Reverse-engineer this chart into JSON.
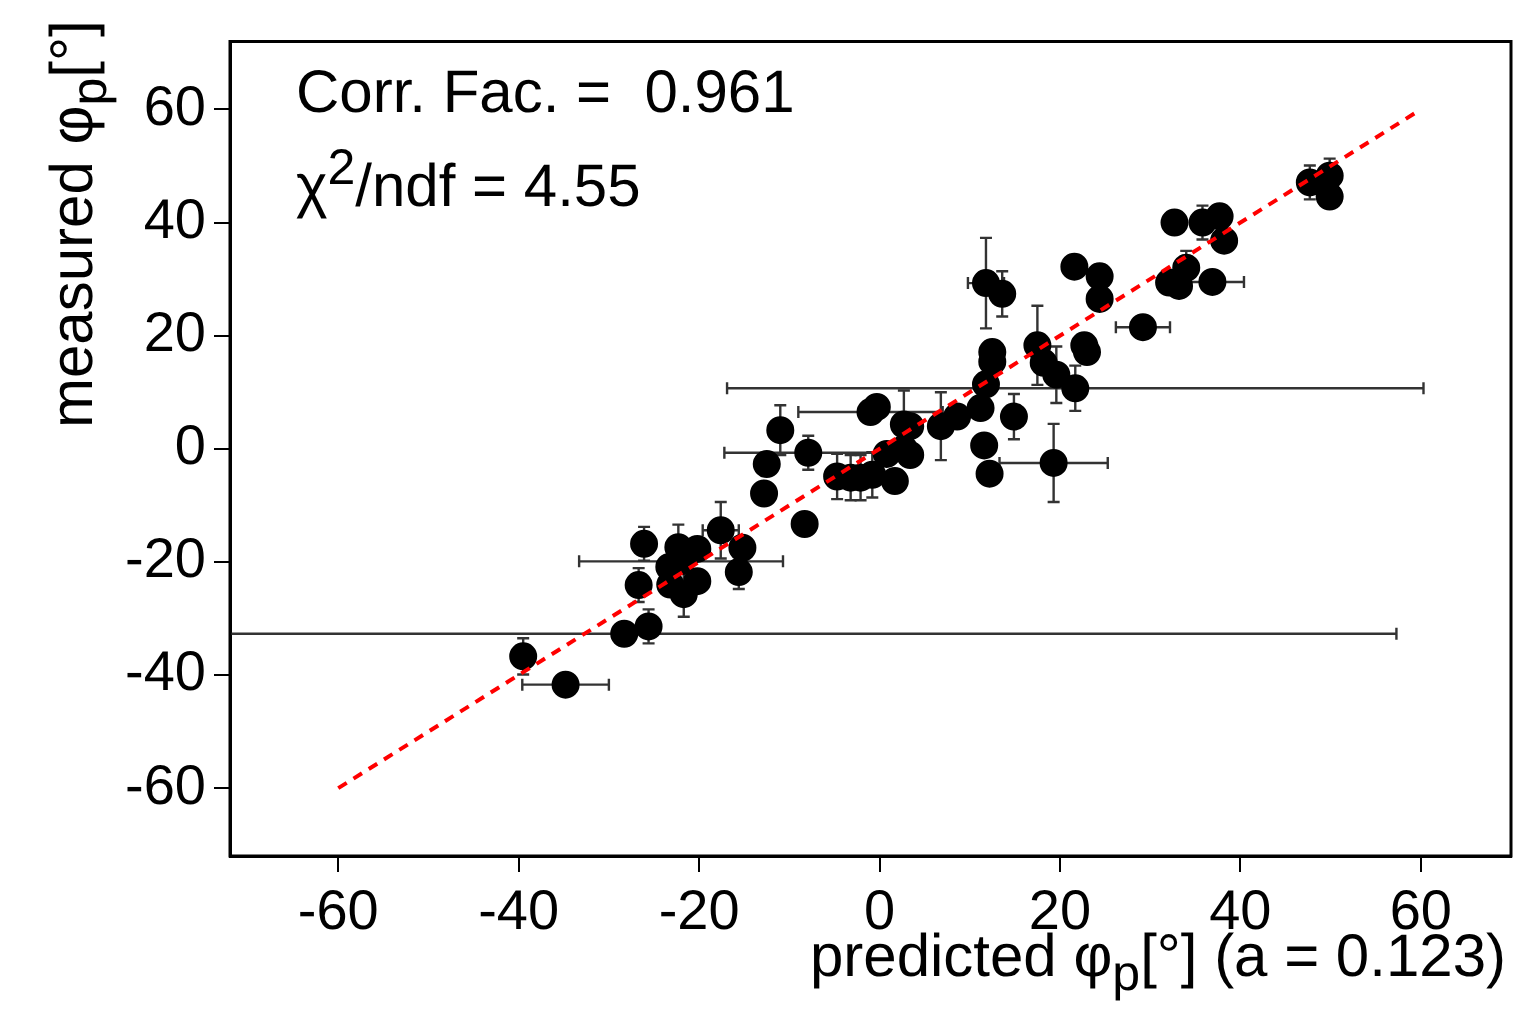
{
  "chart_data": {
    "type": "scatter",
    "xlabel": "predicted φ$_{p}$[°] (a = 0.123)",
    "ylabel": "measured φ$_{p}$[°]",
    "annotations": [
      "Corr. Fac. =  0.961",
      "χ$^{2}$/ndf = 4.55"
    ],
    "xlim": [
      -72,
      70
    ],
    "ylim": [
      -72,
      72
    ],
    "xticks": [
      -60,
      -40,
      -20,
      0,
      20,
      40,
      60
    ],
    "yticks": [
      -60,
      -40,
      -20,
      0,
      20,
      40,
      60
    ],
    "grid": false,
    "legend": false,
    "marker": "circle",
    "series": [
      {
        "color": "#000000",
        "x": [
          -39.5,
          -34.8,
          -28.3,
          -25.6,
          -26.7,
          -26.1,
          -23.3,
          -23.2,
          -22.3,
          -21.7,
          -20.2,
          -20.2,
          -22,
          -17.6,
          -15.2,
          -15.6,
          -12.8,
          -12.5,
          -11,
          -7.9,
          -8.3,
          -4.7,
          -3.2,
          -2.1,
          -0.8,
          0.8,
          -1,
          -0.3,
          2.7,
          3.4,
          2.7,
          6.8,
          8.6,
          11.2,
          14.9,
          11.6,
          11.8,
          12.5,
          12.5,
          17.5,
          18.2,
          19.6,
          22.7,
          23,
          11.8,
          13.6,
          21.6,
          24.4,
          24.4,
          29.2,
          32.1,
          33.2,
          34,
          36.9,
          32.7,
          35.8,
          37.7,
          38.2,
          47.7,
          49.9,
          49.9,
          1.7,
          3.4,
          12.2,
          19.3,
          21.7
        ],
        "values": [
          -36.7,
          -41.7,
          -32.7,
          -31.4,
          -24.1,
          -16.8,
          -20.9,
          -24,
          -17.4,
          -25.7,
          -17.7,
          -23.4,
          -19.9,
          -14.4,
          -17.5,
          -21.8,
          -7.9,
          -2.7,
          3.3,
          -0.7,
          -13.3,
          -4.9,
          -5.1,
          -5.1,
          -4.6,
          -0.9,
          6.5,
          7.4,
          4.3,
          4,
          0,
          4,
          5.7,
          7.2,
          5.7,
          0.6,
          11.4,
          17.1,
          15.4,
          18.3,
          15.2,
          13.1,
          18.3,
          17.1,
          29.3,
          27.4,
          32.2,
          30.5,
          26.5,
          21.5,
          29.4,
          28.8,
          32,
          29.5,
          40,
          40,
          41.1,
          36.8,
          47.1,
          48.3,
          44.6,
          -5.7,
          -1.1,
          -4.4,
          -2.5,
          10.7
        ],
        "errors": [
          3.2,
          null,
          2,
          3,
          3,
          3,
          null,
          null,
          4,
          4,
          null,
          null,
          null,
          5,
          null,
          3,
          null,
          null,
          4.4,
          3,
          null,
          4,
          4,
          4,
          4,
          null,
          null,
          null,
          6,
          null,
          null,
          6,
          null,
          null,
          4,
          null,
          null,
          null,
          null,
          7,
          null,
          5,
          null,
          null,
          8,
          4,
          null,
          2,
          null,
          null,
          null,
          null,
          3,
          null,
          null,
          3,
          null,
          null,
          3,
          3,
          null,
          null,
          null,
          null,
          6.9,
          4
        ],
        "xerrors": [
          null,
          4.8,
          85.6,
          null,
          null,
          null,
          null,
          null,
          null,
          null,
          null,
          null,
          11.3,
          2,
          null,
          null,
          null,
          null,
          null,
          9.3,
          null,
          null,
          null,
          null,
          null,
          null,
          8,
          null,
          null,
          null,
          null,
          null,
          null,
          null,
          null,
          null,
          null,
          null,
          null,
          null,
          null,
          null,
          null,
          null,
          2,
          null,
          null,
          null,
          null,
          3,
          null,
          null,
          null,
          3.5,
          null,
          null,
          null,
          null,
          null,
          null,
          null,
          1.2,
          null,
          null,
          6,
          38.6
        ]
      },
      {
        "type": "line",
        "color": "#ff0000",
        "line_style": "dashed",
        "marker": "none",
        "x": [
          -60,
          60
        ],
        "values": [
          -60,
          60
        ]
      }
    ]
  }
}
